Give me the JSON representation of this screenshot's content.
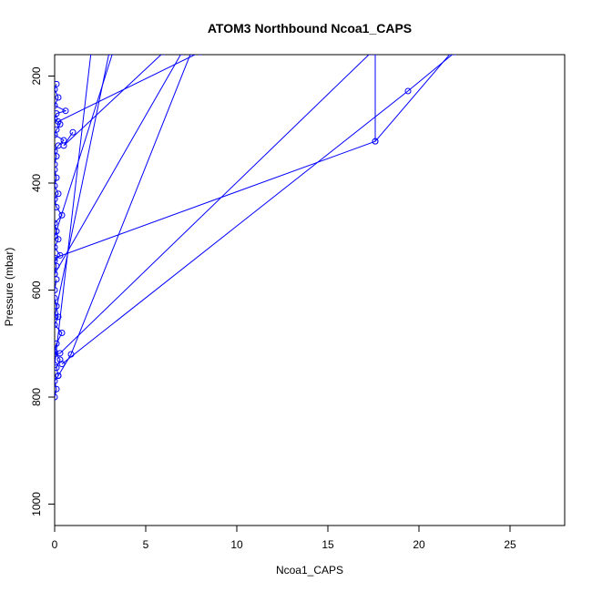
{
  "chart_data": {
    "type": "line",
    "title": "ATOM3 Northbound Ncoa1_CAPS",
    "xlabel": "Ncoa1_CAPS",
    "ylabel": "Pressure (mbar)",
    "xlim": [
      0,
      28
    ],
    "ylim": [
      1040,
      160
    ],
    "y_reversed": true,
    "grid": false,
    "x_ticks": [
      0,
      5,
      10,
      15,
      20,
      25
    ],
    "y_ticks": [
      200,
      400,
      600,
      800,
      1000
    ],
    "series_color": "#0000ff",
    "marker": "open-circle",
    "series": [
      {
        "x": [
          0.0,
          0.1,
          0.0,
          0.2,
          0.1,
          0.3,
          0.0,
          0.1,
          0.4,
          0.0,
          0.2,
          0.1,
          0.0,
          0.0,
          0.1
        ],
        "y": [
          800,
          785,
          770,
          760,
          745,
          730,
          715,
          700,
          680,
          665,
          650,
          630,
          615,
          600,
          580
        ]
      },
      {
        "x": [
          0.0,
          0.1,
          0.0,
          0.3,
          0.0,
          0.2,
          0.1,
          0.0,
          0.4,
          0.1,
          0.0,
          0.2,
          0.0,
          0.1,
          0.0
        ],
        "y": [
          570,
          555,
          545,
          535,
          520,
          505,
          490,
          475,
          460,
          445,
          430,
          420,
          405,
          390,
          375
        ]
      },
      {
        "x": [
          0.0,
          0.1,
          0.0,
          0.2,
          0.5,
          0.0,
          0.1,
          0.3,
          0.0,
          0.1,
          0.6,
          0.0,
          0.2,
          0.0,
          0.1
        ],
        "y": [
          365,
          350,
          340,
          330,
          320,
          310,
          300,
          290,
          280,
          270,
          265,
          255,
          240,
          225,
          215
        ]
      },
      {
        "x": [
          0.0,
          17.6,
          21.8
        ],
        "y": [
          540,
          322,
          155
        ]
      },
      {
        "x": [
          0.4,
          19.4,
          22.0
        ],
        "y": [
          738,
          228,
          155
        ]
      },
      {
        "x": [
          0.0,
          0.3,
          17.4
        ],
        "y": [
          720,
          718,
          155
        ]
      },
      {
        "x": [
          0.2,
          8.0
        ],
        "y": [
          285,
          155
        ]
      },
      {
        "x": [
          17.6,
          17.6
        ],
        "y": [
          322,
          155
        ]
      },
      {
        "x": [
          1.0,
          0.5,
          6.0
        ],
        "y": [
          305,
          330,
          155
        ]
      },
      {
        "x": [
          0.0,
          3.2
        ],
        "y": [
          500,
          155
        ]
      },
      {
        "x": [
          0.0,
          7.0
        ],
        "y": [
          570,
          155
        ]
      },
      {
        "x": [
          0.0,
          3.0
        ],
        "y": [
          650,
          155
        ]
      },
      {
        "x": [
          0.0,
          2.0
        ],
        "y": [
          740,
          155
        ]
      },
      {
        "x": [
          0.2,
          0.9,
          7.5
        ],
        "y": [
          760,
          720,
          155
        ]
      }
    ]
  }
}
